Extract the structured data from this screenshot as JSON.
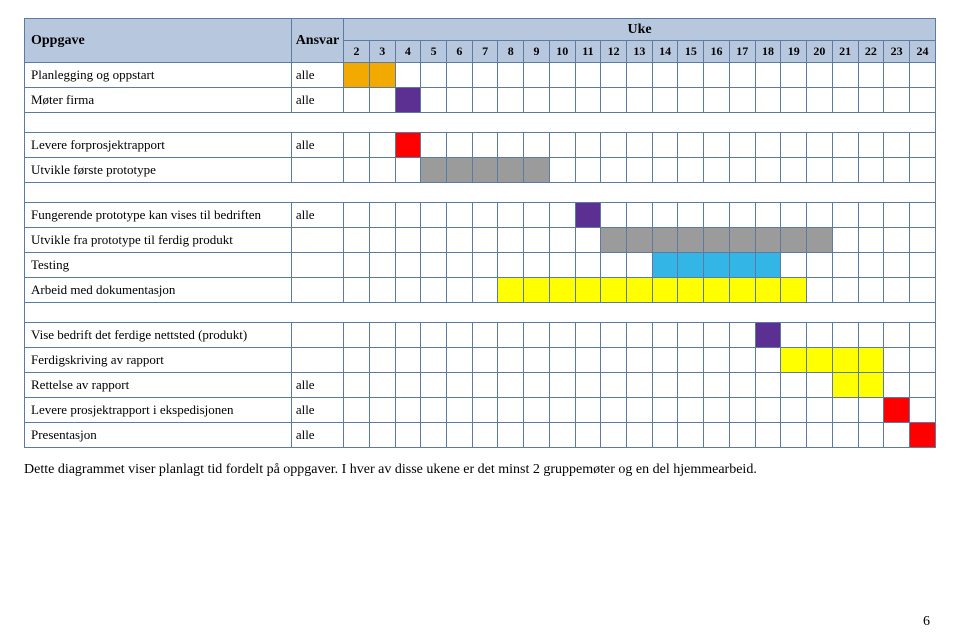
{
  "headers": {
    "task": "Oppgave",
    "ansvar": "Ansvar",
    "uke": "Uke"
  },
  "weeks": [
    2,
    3,
    4,
    5,
    6,
    7,
    8,
    9,
    10,
    11,
    12,
    13,
    14,
    15,
    16,
    17,
    18,
    19,
    20,
    21,
    22,
    23,
    24
  ],
  "colors": {
    "header_bg": "#b7c8de",
    "border": "#5b7ba3",
    "orange": "#f2a900",
    "purple": "#5c2f92",
    "red": "#ff0000",
    "grey": "#9b9b9b",
    "blue": "#33b5e5",
    "yellow": "#ffff00"
  },
  "groups": [
    [
      {
        "task": "Planlegging og oppstart",
        "ansvar": "alle",
        "bars": [
          {
            "from": 2,
            "to": 3,
            "color": "orange"
          }
        ]
      },
      {
        "task": "Møter firma",
        "ansvar": "alle",
        "bars": [
          {
            "from": 4,
            "to": 4,
            "color": "purple"
          }
        ]
      }
    ],
    [
      {
        "task": "Levere forprosjektrapport",
        "ansvar": "alle",
        "bars": [
          {
            "from": 4,
            "to": 4,
            "color": "red"
          }
        ]
      },
      {
        "task": "Utvikle første prototype",
        "ansvar": "",
        "bars": [
          {
            "from": 5,
            "to": 9,
            "color": "grey"
          }
        ]
      }
    ],
    [
      {
        "task": "Fungerende prototype kan vises til bedriften",
        "ansvar": "alle",
        "bars": [
          {
            "from": 11,
            "to": 11,
            "color": "purple"
          }
        ]
      },
      {
        "task": "Utvikle fra prototype til ferdig produkt",
        "ansvar": "",
        "bars": [
          {
            "from": 12,
            "to": 20,
            "color": "grey"
          }
        ]
      },
      {
        "task": "Testing",
        "ansvar": "",
        "bars": [
          {
            "from": 14,
            "to": 18,
            "color": "blue"
          }
        ]
      },
      {
        "task": "Arbeid med dokumentasjon",
        "ansvar": "",
        "bars": [
          {
            "from": 8,
            "to": 19,
            "color": "yellow"
          }
        ]
      }
    ],
    [
      {
        "task": "Vise bedrift det ferdige nettsted (produkt)",
        "ansvar": "",
        "bars": [
          {
            "from": 18,
            "to": 18,
            "color": "purple"
          }
        ]
      },
      {
        "task": "Ferdigskriving av rapport",
        "ansvar": "",
        "bars": [
          {
            "from": 19,
            "to": 22,
            "color": "yellow"
          }
        ]
      },
      {
        "task": "Rettelse av rapport",
        "ansvar": "alle",
        "bars": [
          {
            "from": 21,
            "to": 22,
            "color": "yellow"
          }
        ]
      },
      {
        "task": "Levere prosjektrapport i ekspedisjonen",
        "ansvar": "alle",
        "bars": [
          {
            "from": 23,
            "to": 23,
            "color": "red"
          }
        ]
      },
      {
        "task": "Presentasjon",
        "ansvar": "alle",
        "bars": [
          {
            "from": 24,
            "to": 24,
            "color": "red"
          }
        ]
      }
    ]
  ],
  "caption": "Dette diagrammet viser planlagt tid fordelt på oppgaver. I hver av disse ukene er det minst 2 gruppemøter og en del hjemmearbeid.",
  "page_number": "6"
}
